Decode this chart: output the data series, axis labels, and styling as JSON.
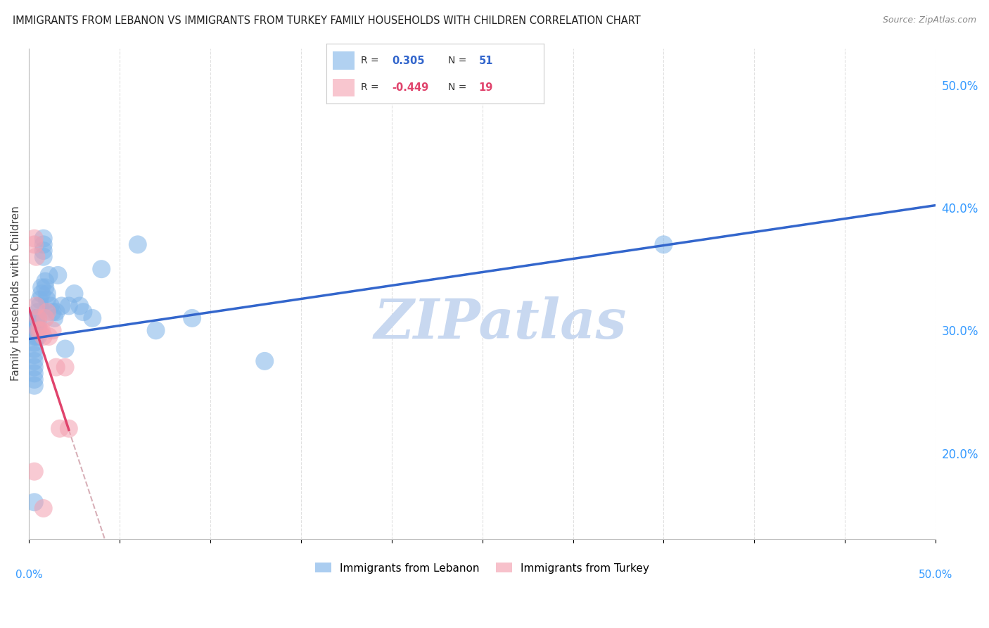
{
  "title": "IMMIGRANTS FROM LEBANON VS IMMIGRANTS FROM TURKEY FAMILY HOUSEHOLDS WITH CHILDREN CORRELATION CHART",
  "source": "Source: ZipAtlas.com",
  "ylabel": "Family Households with Children",
  "right_yticks": [
    "50.0%",
    "40.0%",
    "30.0%",
    "20.0%"
  ],
  "right_ytick_vals": [
    0.5,
    0.4,
    0.3,
    0.2
  ],
  "xlim": [
    0.0,
    0.5
  ],
  "ylim": [
    0.13,
    0.53
  ],
  "legend_R1": "0.305",
  "legend_R2": "-0.449",
  "legend_N1": "51",
  "legend_N2": "19",
  "scatter_lebanon_x": [
    0.003,
    0.003,
    0.003,
    0.003,
    0.003,
    0.003,
    0.003,
    0.003,
    0.003,
    0.003,
    0.004,
    0.004,
    0.004,
    0.004,
    0.005,
    0.005,
    0.005,
    0.005,
    0.005,
    0.006,
    0.006,
    0.007,
    0.007,
    0.008,
    0.008,
    0.008,
    0.008,
    0.009,
    0.009,
    0.01,
    0.01,
    0.011,
    0.012,
    0.013,
    0.014,
    0.015,
    0.016,
    0.018,
    0.02,
    0.022,
    0.025,
    0.028,
    0.03,
    0.035,
    0.04,
    0.06,
    0.07,
    0.09,
    0.13,
    0.35,
    0.003
  ],
  "scatter_lebanon_y": [
    0.3,
    0.295,
    0.29,
    0.285,
    0.28,
    0.275,
    0.27,
    0.265,
    0.26,
    0.255,
    0.31,
    0.305,
    0.3,
    0.295,
    0.315,
    0.31,
    0.305,
    0.3,
    0.295,
    0.325,
    0.32,
    0.335,
    0.33,
    0.375,
    0.37,
    0.365,
    0.36,
    0.34,
    0.335,
    0.33,
    0.325,
    0.345,
    0.32,
    0.315,
    0.31,
    0.315,
    0.345,
    0.32,
    0.285,
    0.32,
    0.33,
    0.32,
    0.315,
    0.31,
    0.35,
    0.37,
    0.3,
    0.31,
    0.275,
    0.37,
    0.16
  ],
  "scatter_turkey_x": [
    0.003,
    0.003,
    0.004,
    0.004,
    0.005,
    0.005,
    0.006,
    0.007,
    0.008,
    0.009,
    0.01,
    0.011,
    0.013,
    0.015,
    0.017,
    0.02,
    0.022,
    0.003,
    0.008
  ],
  "scatter_turkey_y": [
    0.375,
    0.37,
    0.36,
    0.32,
    0.3,
    0.31,
    0.3,
    0.3,
    0.295,
    0.31,
    0.315,
    0.295,
    0.3,
    0.27,
    0.22,
    0.27,
    0.22,
    0.185,
    0.155
  ],
  "color_lebanon": "#7EB3E8",
  "color_turkey": "#F4A0B0",
  "color_lebanon_line": "#3366CC",
  "color_turkey_line": "#E0436C",
  "color_trend_ext": "#D8B0B8",
  "background_color": "#FFFFFF",
  "grid_color": "#DDDDDD",
  "watermark": "ZIPatlas",
  "watermark_color": "#C8D8F0"
}
